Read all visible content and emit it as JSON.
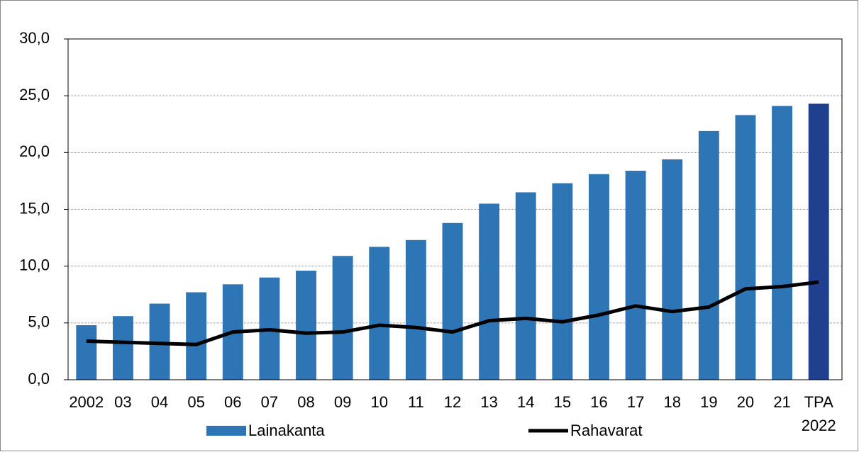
{
  "chart_data": {
    "type": "bar_line",
    "categories": [
      "2002",
      "03",
      "04",
      "05",
      "06",
      "07",
      "08",
      "09",
      "10",
      "11",
      "12",
      "13",
      "14",
      "15",
      "16",
      "17",
      "18",
      "19",
      "20",
      "21",
      "TPA\n2022"
    ],
    "series": [
      {
        "name": "Lainakanta",
        "type": "bar",
        "color": "#2e75b6",
        "colors": [
          "#2e75b6",
          "#2e75b6",
          "#2e75b6",
          "#2e75b6",
          "#2e75b6",
          "#2e75b6",
          "#2e75b6",
          "#2e75b6",
          "#2e75b6",
          "#2e75b6",
          "#2e75b6",
          "#2e75b6",
          "#2e75b6",
          "#2e75b6",
          "#2e75b6",
          "#2e75b6",
          "#2e75b6",
          "#2e75b6",
          "#2e75b6",
          "#2e75b6",
          "#1f3f8f"
        ],
        "values": [
          4.8,
          5.6,
          6.7,
          7.7,
          8.4,
          9.0,
          9.6,
          10.9,
          11.7,
          12.3,
          13.8,
          15.5,
          16.5,
          17.3,
          18.1,
          18.4,
          19.4,
          21.9,
          23.3,
          24.1,
          24.3
        ]
      },
      {
        "name": "Rahavarat",
        "type": "line",
        "color": "#000000",
        "values": [
          3.4,
          3.3,
          3.2,
          3.1,
          4.2,
          4.4,
          4.1,
          4.2,
          4.8,
          4.6,
          4.2,
          5.2,
          5.4,
          5.1,
          5.7,
          6.5,
          6.0,
          6.4,
          8.0,
          8.2,
          8.6
        ]
      }
    ],
    "ylim": [
      0,
      30
    ],
    "yticks": [
      {
        "value": 0,
        "label": "0,0"
      },
      {
        "value": 5,
        "label": "5,0"
      },
      {
        "value": 10,
        "label": "10,0"
      },
      {
        "value": 15,
        "label": "15,0"
      },
      {
        "value": 20,
        "label": "20,0"
      },
      {
        "value": 25,
        "label": "25,0"
      },
      {
        "value": 30,
        "label": "30,0"
      }
    ],
    "grid": true
  }
}
